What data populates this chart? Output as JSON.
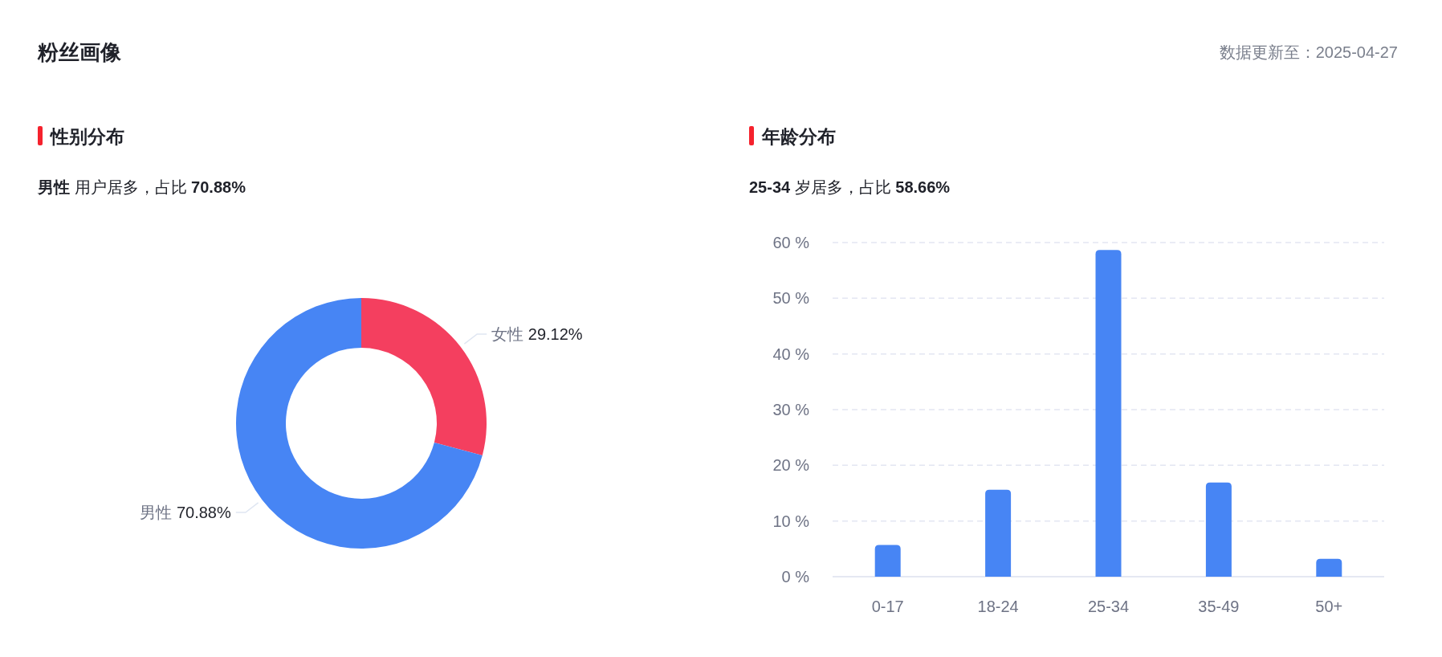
{
  "chart_data": [
    {
      "type": "donut",
      "title": "性别分布",
      "subtitle": "男性 用户居多，占比 70.88%",
      "annotations": [
        "粉丝画像",
        "数据更新至：2025-04-27"
      ],
      "categories": [
        "女性",
        "男性"
      ],
      "values": [
        29.12,
        70.88
      ],
      "colors": [
        "#f43f5f",
        "#4785f4"
      ],
      "value_labels": [
        "29.12%",
        "70.88%"
      ]
    },
    {
      "type": "bar",
      "title": "年龄分布",
      "subtitle": "25-34 岁居多，占比 58.66%",
      "categories": [
        "0-17",
        "18-24",
        "25-34",
        "35-49",
        "50+"
      ],
      "series": [
        {
          "color": "#4785f4",
          "values": [
            5.7,
            15.6,
            58.66,
            16.9,
            3.2
          ]
        }
      ],
      "ylim": [
        0,
        60
      ],
      "yticks": [
        {
          "value": 0,
          "label": "0 %"
        },
        {
          "value": 10,
          "label": "10 %"
        },
        {
          "value": 20,
          "label": "20 %"
        },
        {
          "value": 30,
          "label": "30 %"
        },
        {
          "value": 40,
          "label": "40 %"
        },
        {
          "value": 50,
          "label": "50 %"
        },
        {
          "value": 60,
          "label": "60 %"
        }
      ],
      "grid": "y"
    }
  ]
}
